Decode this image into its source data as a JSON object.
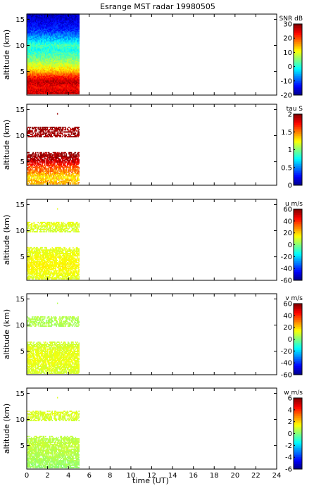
{
  "title": "Esrange MST radar 19980505",
  "chart_data": {
    "type": "heatmap",
    "title": "Esrange MST radar 19980505",
    "xlabel": "time (UT)",
    "xlim": [
      0,
      24
    ],
    "x_ticks": [
      0,
      2,
      4,
      6,
      8,
      10,
      12,
      14,
      16,
      18,
      20,
      22,
      24
    ],
    "data_time_range_hours": [
      0,
      5
    ],
    "panels": [
      {
        "ylabel": "altitude (km)",
        "ylim": [
          0.5,
          16
        ],
        "y_ticks": [
          5,
          10,
          15
        ],
        "colorbar": {
          "label": "SNR dB",
          "range": [
            -20,
            30
          ],
          "ticks": [
            30,
            20,
            10,
            0,
            -10,
            -20
          ],
          "colormap": "jet"
        },
        "profile": [
          {
            "alt_km": 1.0,
            "value": 26
          },
          {
            "alt_km": 2.0,
            "value": 24
          },
          {
            "alt_km": 3.0,
            "value": 27
          },
          {
            "alt_km": 4.0,
            "value": 22
          },
          {
            "alt_km": 5.0,
            "value": 14
          },
          {
            "alt_km": 6.0,
            "value": 10
          },
          {
            "alt_km": 7.0,
            "value": 6
          },
          {
            "alt_km": 8.0,
            "value": 3
          },
          {
            "alt_km": 9.0,
            "value": 0
          },
          {
            "alt_km": 10.0,
            "value": 2
          },
          {
            "alt_km": 11.0,
            "value": -4
          },
          {
            "alt_km": 12.0,
            "value": -8
          },
          {
            "alt_km": 13.0,
            "value": -12
          },
          {
            "alt_km": 14.0,
            "value": -14
          },
          {
            "alt_km": 15.0,
            "value": -16
          },
          {
            "alt_km": 16.0,
            "value": -17
          }
        ]
      },
      {
        "ylabel": "altitude (km)",
        "ylim": [
          0.5,
          16
        ],
        "y_ticks": [
          5,
          10,
          15
        ],
        "colorbar": {
          "label": "tau S",
          "range": [
            0,
            2
          ],
          "ticks": [
            2,
            1.5,
            1,
            0.5,
            0
          ],
          "colormap": "jet"
        },
        "profile": [
          {
            "alt_km": 1.0,
            "value": 1.4
          },
          {
            "alt_km": 2.0,
            "value": 1.3
          },
          {
            "alt_km": 3.0,
            "value": 1.5
          },
          {
            "alt_km": 4.0,
            "value": 1.6
          },
          {
            "alt_km": 5.0,
            "value": 1.85
          },
          {
            "alt_km": 6.0,
            "value": 1.95
          },
          {
            "alt_km": 9.8,
            "value": 1.95
          },
          {
            "alt_km": 10.8,
            "value": 1.95
          }
        ]
      },
      {
        "ylabel": "altitude (km)",
        "ylim": [
          0.5,
          16
        ],
        "y_ticks": [
          5,
          10,
          15
        ],
        "colorbar": {
          "label": "u m/s",
          "range": [
            -60,
            60
          ],
          "ticks": [
            60,
            40,
            20,
            0,
            -20,
            -40,
            -60
          ],
          "colormap": "jet"
        },
        "profile": [
          {
            "alt_km": 1.0,
            "value": 12
          },
          {
            "alt_km": 3.0,
            "value": 16
          },
          {
            "alt_km": 5.0,
            "value": 14
          },
          {
            "alt_km": 6.0,
            "value": 12
          },
          {
            "alt_km": 10.0,
            "value": 10
          },
          {
            "alt_km": 11.0,
            "value": 12
          }
        ]
      },
      {
        "ylabel": "altitude (km)",
        "ylim": [
          0.5,
          16
        ],
        "y_ticks": [
          5,
          10,
          15
        ],
        "colorbar": {
          "label": "v m/s",
          "range": [
            -60,
            60
          ],
          "ticks": [
            60,
            40,
            20,
            0,
            -20,
            -40,
            -60
          ],
          "colormap": "jet"
        },
        "profile": [
          {
            "alt_km": 1.0,
            "value": 10
          },
          {
            "alt_km": 3.0,
            "value": 13
          },
          {
            "alt_km": 5.0,
            "value": 12
          },
          {
            "alt_km": 6.0,
            "value": 10
          },
          {
            "alt_km": 10.0,
            "value": 5
          },
          {
            "alt_km": 11.0,
            "value": 6
          }
        ]
      },
      {
        "ylabel": "altitude (km)",
        "ylim": [
          0.5,
          16
        ],
        "y_ticks": [
          5,
          10,
          15
        ],
        "colorbar": {
          "label": "w m/s",
          "range": [
            -6,
            6
          ],
          "ticks": [
            6,
            4,
            2,
            0,
            -2,
            -4,
            -6
          ],
          "colormap": "jet"
        },
        "profile": [
          {
            "alt_km": 1.0,
            "value": 0.3
          },
          {
            "alt_km": 3.0,
            "value": 0.6
          },
          {
            "alt_km": 5.0,
            "value": 0.8
          },
          {
            "alt_km": 6.0,
            "value": 0.7
          },
          {
            "alt_km": 10.0,
            "value": 1.0
          },
          {
            "alt_km": 11.0,
            "value": 1.1
          }
        ]
      }
    ]
  }
}
